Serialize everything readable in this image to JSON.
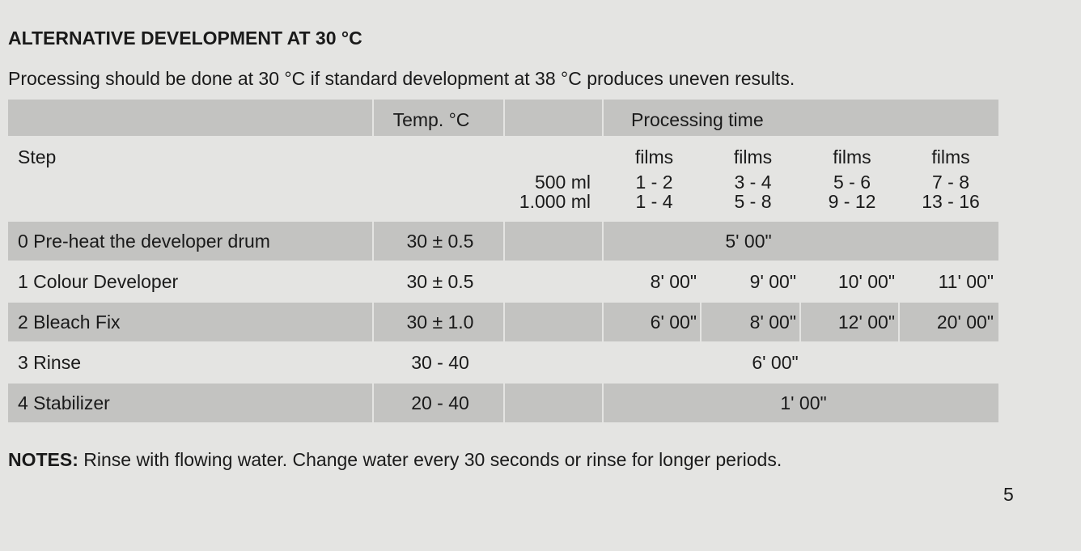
{
  "heading": "ALTERNATIVE DEVELOPMENT AT 30 °C",
  "intro": "Processing should be done at 30 °C if standard development at 38 °C  produces uneven results.",
  "table": {
    "header": {
      "temp": "Temp. °C",
      "time": "Processing time"
    },
    "step_label": "Step",
    "volumes": [
      "500 ml",
      "1.000 ml"
    ],
    "film_groups": [
      {
        "label": "films",
        "ranges": [
          "1 - 2",
          "1 - 4"
        ]
      },
      {
        "label": "films",
        "ranges": [
          "3 - 4",
          "5 - 8"
        ]
      },
      {
        "label": "films",
        "ranges": [
          "5 - 6",
          "9 - 12"
        ]
      },
      {
        "label": "films",
        "ranges": [
          "7 - 8",
          "13 - 16"
        ]
      }
    ],
    "rows": [
      {
        "step": "0 Pre-heat the developer drum",
        "temp": "30 ± 0.5",
        "times": [
          "5' 00\""
        ]
      },
      {
        "step": "1 Colour Developer",
        "temp": "30 ± 0.5",
        "times": [
          "8' 00\"",
          "9' 00\"",
          "10' 00\"",
          "11' 00\""
        ]
      },
      {
        "step": "2  Bleach Fix",
        "temp": "30 ± 1.0",
        "times": [
          "6' 00\"",
          "8' 00\"",
          "12' 00\"",
          "20' 00\""
        ]
      },
      {
        "step": "3  Rinse",
        "temp": "30 - 40",
        "times": [
          "6' 00\""
        ]
      },
      {
        "step": "4  Stabilizer",
        "temp": "20 - 40",
        "times": [
          "1' 00\""
        ]
      }
    ]
  },
  "notes": {
    "label": "NOTES:",
    "text": " Rinse with flowing water. Change water every 30 seconds or rinse for longer periods."
  },
  "page_number": "5"
}
